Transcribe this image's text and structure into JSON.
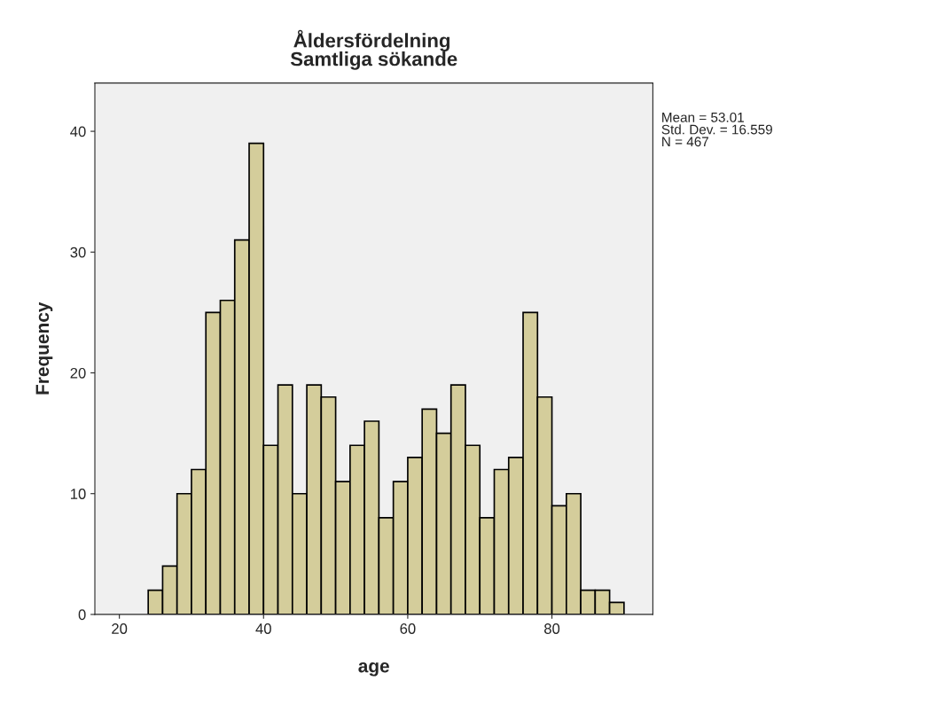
{
  "chart_data": {
    "type": "histogram",
    "title": "Åldersfördelning",
    "subtitle": "Samtliga sökande",
    "xlabel": "age",
    "ylabel": "Frequency",
    "bins": [
      24,
      26,
      28,
      30,
      32,
      34,
      36,
      38,
      40,
      42,
      44,
      46,
      48,
      50,
      52,
      54,
      56,
      58,
      60,
      62,
      64,
      66,
      68,
      70,
      72,
      74,
      76,
      78,
      80,
      82,
      84,
      86,
      88,
      90
    ],
    "values": [
      2,
      4,
      10,
      12,
      25,
      26,
      31,
      39,
      14,
      19,
      10,
      19,
      18,
      11,
      14,
      16,
      8,
      11,
      13,
      17,
      15,
      19,
      14,
      8,
      12,
      13,
      25,
      18,
      9,
      10,
      2,
      2,
      1
    ],
    "color": "#d4cd9b",
    "xlim": [
      16.6,
      94
    ],
    "xticks": [
      20,
      40,
      60,
      80
    ],
    "ylim": [
      0,
      44
    ],
    "yticks": [
      0,
      10,
      20,
      30,
      40
    ],
    "grid": false,
    "legend": false,
    "annotations": [
      "Mean = 53.01\nStd. Dev. = 16.559\nN = 467"
    ]
  }
}
